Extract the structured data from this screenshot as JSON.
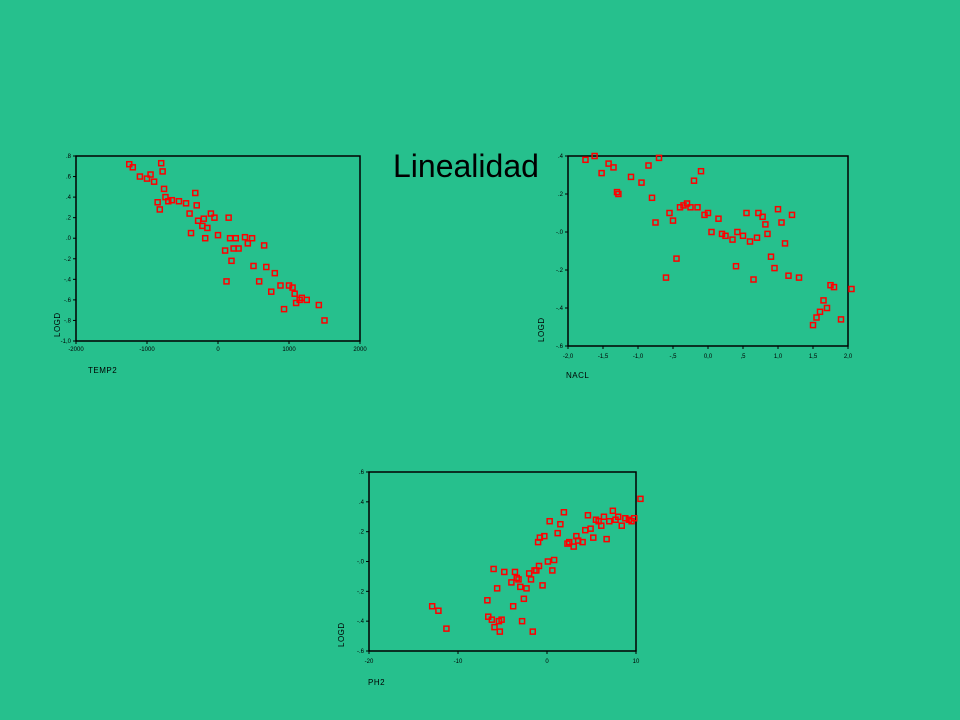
{
  "slide": {
    "title": "Linealidad"
  },
  "chart_data": [
    {
      "type": "scatter",
      "xlabel": "TEMP2",
      "ylabel": "LOGD",
      "xlim": [
        -2000,
        2000
      ],
      "ylim": [
        -1.0,
        0.8
      ],
      "xticks": [
        "-2000",
        "-1000",
        "0",
        "1000",
        "2000"
      ],
      "yticks": [
        ".8",
        ".6",
        ".4",
        ".2",
        ".0",
        "-.2",
        "-.4",
        "-.6",
        "-.8",
        "-1,0"
      ],
      "marker_color": "#ff0000",
      "points": [
        [
          -1250,
          0.72
        ],
        [
          -1200,
          0.69
        ],
        [
          -1100,
          0.6
        ],
        [
          -1000,
          0.58
        ],
        [
          -950,
          0.62
        ],
        [
          -900,
          0.55
        ],
        [
          -850,
          0.35
        ],
        [
          -820,
          0.28
        ],
        [
          -800,
          0.73
        ],
        [
          -780,
          0.65
        ],
        [
          -760,
          0.48
        ],
        [
          -740,
          0.4
        ],
        [
          -700,
          0.36
        ],
        [
          -650,
          0.37
        ],
        [
          -550,
          0.36
        ],
        [
          -450,
          0.34
        ],
        [
          -400,
          0.24
        ],
        [
          -380,
          0.05
        ],
        [
          -320,
          0.44
        ],
        [
          -300,
          0.32
        ],
        [
          -280,
          0.17
        ],
        [
          -220,
          0.12
        ],
        [
          -200,
          0.19
        ],
        [
          -180,
          0.0
        ],
        [
          -150,
          0.1
        ],
        [
          -100,
          0.24
        ],
        [
          -50,
          0.2
        ],
        [
          0,
          0.03
        ],
        [
          100,
          -0.12
        ],
        [
          120,
          -0.42
        ],
        [
          150,
          0.2
        ],
        [
          170,
          0.0
        ],
        [
          190,
          -0.22
        ],
        [
          220,
          -0.1
        ],
        [
          250,
          0.0
        ],
        [
          290,
          -0.1
        ],
        [
          380,
          0.01
        ],
        [
          420,
          -0.05
        ],
        [
          480,
          0.0
        ],
        [
          500,
          -0.27
        ],
        [
          580,
          -0.42
        ],
        [
          650,
          -0.07
        ],
        [
          680,
          -0.28
        ],
        [
          750,
          -0.52
        ],
        [
          800,
          -0.34
        ],
        [
          880,
          -0.46
        ],
        [
          930,
          -0.69
        ],
        [
          1000,
          -0.46
        ],
        [
          1050,
          -0.48
        ],
        [
          1080,
          -0.54
        ],
        [
          1100,
          -0.63
        ],
        [
          1150,
          -0.6
        ],
        [
          1180,
          -0.58
        ],
        [
          1250,
          -0.6
        ],
        [
          1420,
          -0.65
        ],
        [
          1500,
          -0.8
        ]
      ]
    },
    {
      "type": "scatter",
      "xlabel": "NACL",
      "ylabel": "LOGD",
      "xlim": [
        -2.0,
        2.0
      ],
      "ylim": [
        -0.6,
        0.4
      ],
      "xticks": [
        "-2,0",
        "-1,5",
        "-1,0",
        "-,5",
        "0,0",
        ",5",
        "1,0",
        "1,5",
        "2,0"
      ],
      "yticks": [
        ".4",
        ".2",
        "-.0",
        "-.2",
        "-.4",
        "-.6"
      ],
      "marker_color": "#ff0000",
      "points": [
        [
          -1.75,
          0.38
        ],
        [
          -1.62,
          0.4
        ],
        [
          -1.52,
          0.31
        ],
        [
          -1.42,
          0.36
        ],
        [
          -1.35,
          0.34
        ],
        [
          -1.3,
          0.21
        ],
        [
          -1.28,
          0.2
        ],
        [
          -1.1,
          0.29
        ],
        [
          -0.95,
          0.26
        ],
        [
          -0.85,
          0.35
        ],
        [
          -0.8,
          0.18
        ],
        [
          -0.75,
          0.05
        ],
        [
          -0.7,
          0.39
        ],
        [
          -0.6,
          -0.24
        ],
        [
          -0.55,
          0.1
        ],
        [
          -0.5,
          0.06
        ],
        [
          -0.45,
          -0.14
        ],
        [
          -0.4,
          0.13
        ],
        [
          -0.35,
          0.14
        ],
        [
          -0.3,
          0.15
        ],
        [
          -0.25,
          0.13
        ],
        [
          -0.2,
          0.27
        ],
        [
          -0.15,
          0.13
        ],
        [
          -0.1,
          0.32
        ],
        [
          -0.05,
          0.09
        ],
        [
          0.0,
          0.1
        ],
        [
          0.05,
          0.0
        ],
        [
          0.15,
          0.07
        ],
        [
          0.2,
          -0.01
        ],
        [
          0.25,
          -0.02
        ],
        [
          0.35,
          -0.04
        ],
        [
          0.4,
          -0.18
        ],
        [
          0.42,
          0.0
        ],
        [
          0.5,
          -0.02
        ],
        [
          0.55,
          0.1
        ],
        [
          0.6,
          -0.05
        ],
        [
          0.65,
          -0.25
        ],
        [
          0.7,
          -0.03
        ],
        [
          0.72,
          0.1
        ],
        [
          0.78,
          0.08
        ],
        [
          0.82,
          0.04
        ],
        [
          0.85,
          -0.01
        ],
        [
          0.9,
          -0.13
        ],
        [
          0.95,
          -0.19
        ],
        [
          1.0,
          0.12
        ],
        [
          1.05,
          0.05
        ],
        [
          1.1,
          -0.06
        ],
        [
          1.15,
          -0.23
        ],
        [
          1.2,
          0.09
        ],
        [
          1.3,
          -0.24
        ],
        [
          1.5,
          -0.49
        ],
        [
          1.55,
          -0.45
        ],
        [
          1.6,
          -0.42
        ],
        [
          1.65,
          -0.36
        ],
        [
          1.7,
          -0.4
        ],
        [
          1.75,
          -0.28
        ],
        [
          1.8,
          -0.29
        ],
        [
          1.9,
          -0.46
        ],
        [
          2.05,
          -0.3
        ]
      ]
    },
    {
      "type": "scatter",
      "xlabel": "PH2",
      "ylabel": "LOGD",
      "xlim": [
        -20,
        10
      ],
      "ylim": [
        -0.6,
        0.6
      ],
      "xticks": [
        "-20",
        "-10",
        "0",
        "10"
      ],
      "yticks": [
        ".6",
        ".4",
        ".2",
        "-.0",
        "-.2",
        "-.4",
        "-.6"
      ],
      "marker_color": "#ff0000",
      "points": [
        [
          -12.9,
          -0.3
        ],
        [
          -12.2,
          -0.33
        ],
        [
          -11.3,
          -0.45
        ],
        [
          -6.7,
          -0.26
        ],
        [
          -6.6,
          -0.37
        ],
        [
          -6.2,
          -0.39
        ],
        [
          -6.0,
          -0.05
        ],
        [
          -5.9,
          -0.44
        ],
        [
          -5.6,
          -0.18
        ],
        [
          -5.4,
          -0.4
        ],
        [
          -5.3,
          -0.47
        ],
        [
          -5.1,
          -0.39
        ],
        [
          -4.8,
          -0.07
        ],
        [
          -4.0,
          -0.14
        ],
        [
          -3.8,
          -0.3
        ],
        [
          -3.6,
          -0.07
        ],
        [
          -3.4,
          -0.11
        ],
        [
          -3.2,
          -0.12
        ],
        [
          -3.0,
          -0.17
        ],
        [
          -2.8,
          -0.4
        ],
        [
          -2.6,
          -0.25
        ],
        [
          -2.3,
          -0.18
        ],
        [
          -2.0,
          -0.08
        ],
        [
          -1.8,
          -0.12
        ],
        [
          -1.6,
          -0.47
        ],
        [
          -1.4,
          -0.06
        ],
        [
          -1.2,
          -0.06
        ],
        [
          -1.0,
          0.13
        ],
        [
          -0.9,
          -0.03
        ],
        [
          -0.8,
          0.16
        ],
        [
          -0.5,
          -0.16
        ],
        [
          -0.3,
          0.17
        ],
        [
          0.1,
          0.0
        ],
        [
          0.3,
          0.27
        ],
        [
          0.6,
          -0.06
        ],
        [
          0.8,
          0.01
        ],
        [
          1.2,
          0.19
        ],
        [
          1.5,
          0.25
        ],
        [
          1.9,
          0.33
        ],
        [
          2.3,
          0.12
        ],
        [
          2.5,
          0.13
        ],
        [
          3.0,
          0.1
        ],
        [
          3.3,
          0.17
        ],
        [
          3.5,
          0.14
        ],
        [
          4.0,
          0.13
        ],
        [
          4.3,
          0.21
        ],
        [
          4.6,
          0.31
        ],
        [
          4.9,
          0.22
        ],
        [
          5.2,
          0.16
        ],
        [
          5.5,
          0.28
        ],
        [
          5.8,
          0.27
        ],
        [
          6.1,
          0.24
        ],
        [
          6.4,
          0.3
        ],
        [
          6.7,
          0.15
        ],
        [
          7.0,
          0.27
        ],
        [
          7.4,
          0.34
        ],
        [
          7.7,
          0.28
        ],
        [
          8.0,
          0.3
        ],
        [
          8.4,
          0.24
        ],
        [
          8.8,
          0.29
        ],
        [
          9.2,
          0.28
        ],
        [
          9.5,
          0.27
        ],
        [
          9.8,
          0.29
        ],
        [
          10.5,
          0.42
        ]
      ]
    }
  ]
}
